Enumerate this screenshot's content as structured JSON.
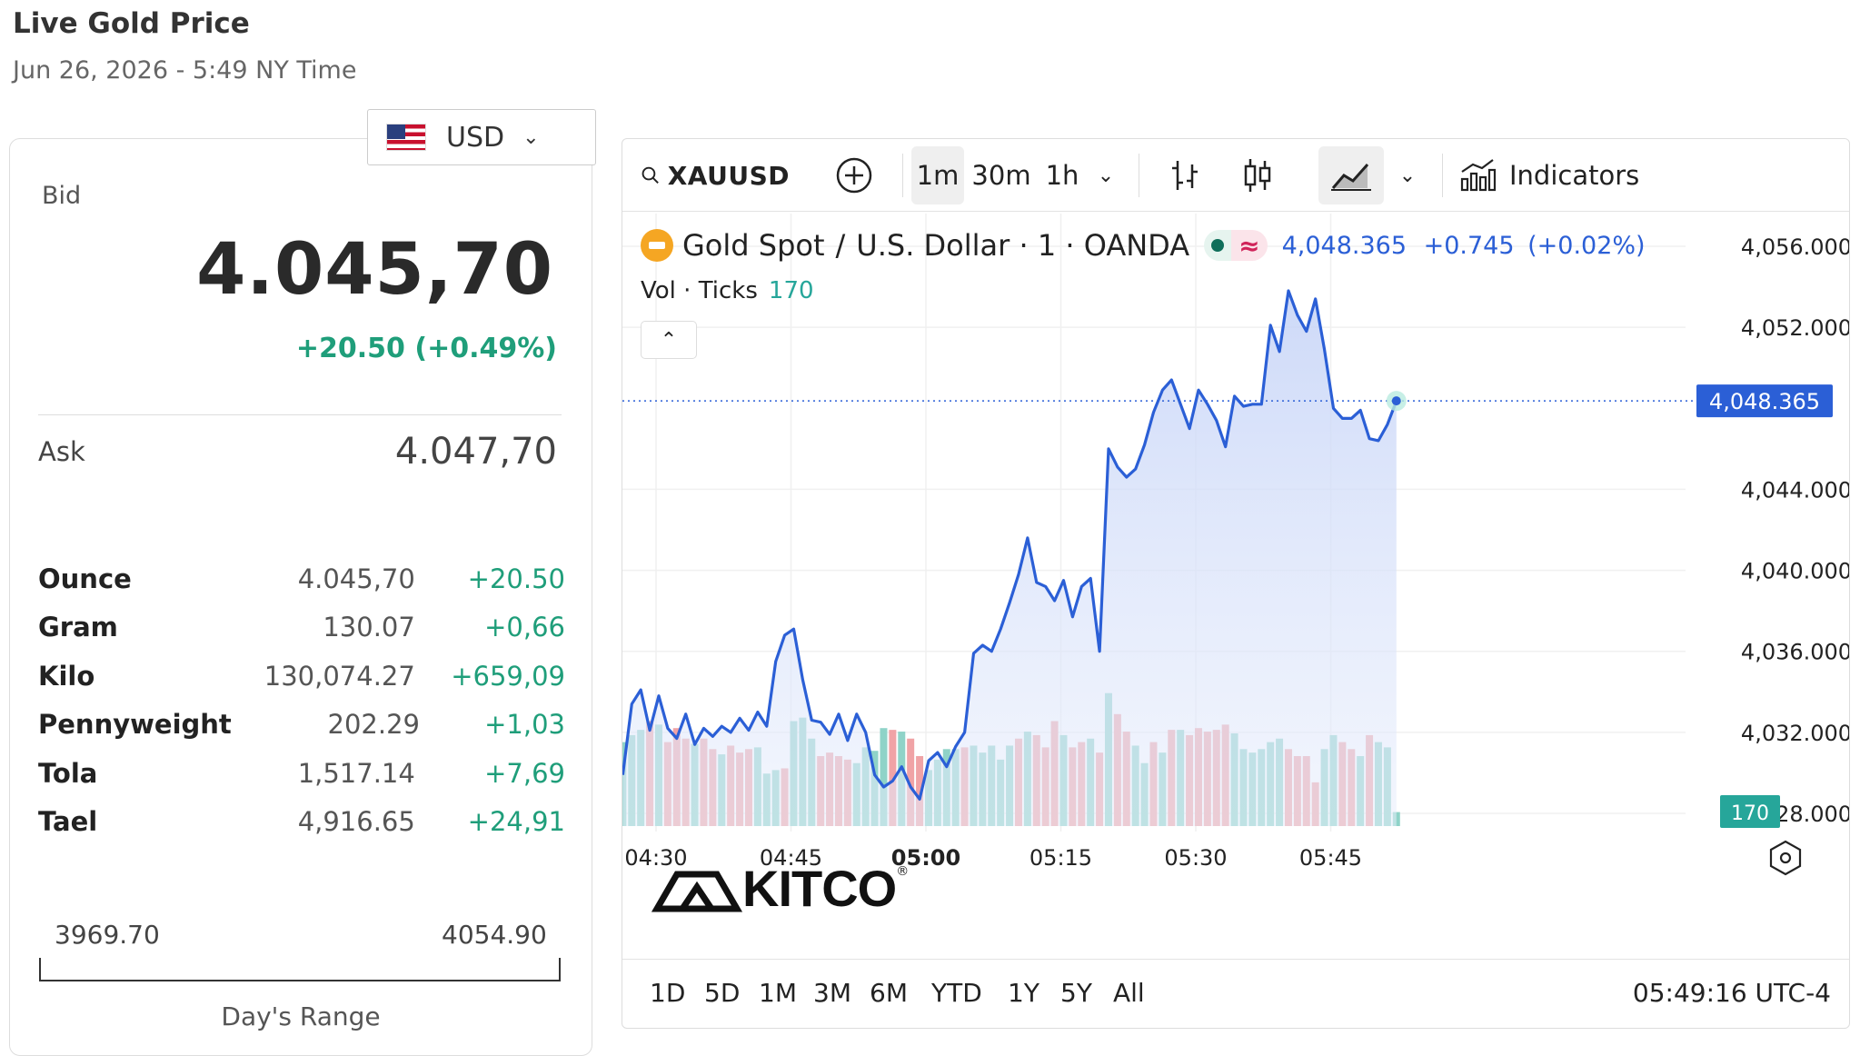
{
  "header": {
    "title": "Live Gold Price",
    "subtitle": "Jun 26, 2026 - 5:49 NY Time"
  },
  "currency": {
    "selected": "USD",
    "flag_icon": "us-flag-icon"
  },
  "quote": {
    "bid_label": "Bid",
    "bid_value": "4.045,70",
    "bid_change": "+20.50 (+0.49%)",
    "ask_label": "Ask",
    "ask_value": "4.047,70",
    "change_color": "#1f9e7a"
  },
  "units": [
    {
      "name": "Ounce",
      "price": "4.045,70",
      "change": "+20.50"
    },
    {
      "name": "Gram",
      "price": "130.07",
      "change": "+0,66"
    },
    {
      "name": "Kilo",
      "price": "130,074.27",
      "change": "+659,09"
    },
    {
      "name": "Pennyweight",
      "price": "202.29",
      "change": "+1,03"
    },
    {
      "name": "Tola",
      "price": "1,517.14",
      "change": "+7,69"
    },
    {
      "name": "Tael",
      "price": "4,916.65",
      "change": "+24,91"
    }
  ],
  "day_range": {
    "low": "3969.70",
    "high": "4054.90",
    "label": "Day's Range"
  },
  "toolbar": {
    "symbol": "XAUUSD",
    "intervals": [
      "1m",
      "30m",
      "1h"
    ],
    "active_interval": "1m",
    "indicators_label": "Indicators"
  },
  "legend": {
    "name": "Gold Spot",
    "separator": "/",
    "quote_name": "U.S. Dollar · 1 · OANDA",
    "last": "4,048.365",
    "change": "+0.745",
    "change_pct": "(+0.02%)",
    "vol_label": "Vol · Ticks",
    "vol_value": "170"
  },
  "range_buttons": [
    "1D",
    "5D",
    "1M",
    "3M",
    "6M",
    "YTD",
    "1Y",
    "5Y",
    "All"
  ],
  "clock": "05:49:16 UTC-4",
  "watermark": "KITCO",
  "chart_data": {
    "type": "area",
    "ylim": [
      4028,
      4056
    ],
    "yticks": [
      "4,056.000",
      "4,052.000",
      "4,044.000",
      "4,040.000",
      "4,036.000",
      "4,032.000",
      "4,028.000"
    ],
    "ytick_values": [
      4056,
      4052,
      4044,
      4040,
      4036,
      4032,
      4028
    ],
    "xticks": [
      "04:30",
      "04:45",
      "05:00",
      "05:15",
      "05:30",
      "05:45"
    ],
    "xtick_minutes": [
      0,
      15,
      30,
      45,
      60,
      75
    ],
    "last_price_label": "4,048.365",
    "last_price": 4048.365,
    "volume_label": "170",
    "line_color": "#2b5fd6",
    "up_color": "#8fd3c8",
    "down_color": "#f0a3a6",
    "series": [
      {
        "values": [
          4029.9,
          4033.4,
          4034.1,
          4032.1,
          4033.8,
          4032.2,
          4031.7,
          4032.9,
          4031.4,
          4032.2,
          4031.8,
          4032.3,
          4032.0,
          4032.7,
          4032.1,
          4033.0,
          4032.3,
          4035.5,
          4036.8,
          4037.1,
          4034.6,
          4032.6,
          4032.5,
          4031.9,
          4032.9,
          4031.6,
          4032.9,
          4032.0,
          4029.9,
          4029.3,
          4029.6,
          4030.3,
          4029.3,
          4028.7,
          4030.6,
          4031.0,
          4030.3,
          4031.3,
          4032.0,
          4035.9,
          4036.3,
          4036.0,
          4037.1,
          4038.4,
          4039.8,
          4041.6,
          4039.4,
          4039.2,
          4038.5,
          4039.5,
          4037.7,
          4039.2,
          4039.6,
          4036.0,
          4046.0,
          4045.1,
          4044.6,
          4045.0,
          4046.2,
          4047.8,
          4048.9,
          4049.4,
          4048.2,
          4047.0,
          4048.9,
          4048.2,
          4047.4,
          4046.1,
          4048.6,
          4048.1,
          4048.2,
          4048.2,
          4052.1,
          4050.8,
          4053.8,
          4052.6,
          4051.8,
          4053.4,
          4050.9,
          4048.0,
          4047.5,
          4047.5,
          4047.9,
          4046.5,
          4046.4,
          4047.2,
          4048.365
        ]
      }
    ],
    "volume": {
      "values": [
        48,
        52,
        55,
        60,
        58,
        48,
        56,
        50,
        47,
        50,
        44,
        41,
        46,
        42,
        44,
        45,
        30,
        32,
        33,
        60,
        62,
        50,
        40,
        42,
        40,
        38,
        36,
        45,
        43,
        56,
        55,
        54,
        50,
        40,
        32,
        38,
        44,
        44,
        45,
        46,
        42,
        46,
        38,
        46,
        50,
        54,
        52,
        45,
        60,
        52,
        45,
        48,
        50,
        42,
        76,
        64,
        54,
        46,
        36,
        48,
        42,
        55,
        55,
        52,
        56,
        54,
        55,
        58,
        53,
        44,
        42,
        44,
        48,
        50,
        44,
        40,
        40,
        25,
        44,
        52,
        48,
        44,
        40,
        52,
        48,
        45,
        8
      ],
      "down": [
        0,
        0,
        0,
        1,
        0,
        1,
        1,
        1,
        0,
        1,
        1,
        0,
        1,
        1,
        1,
        0,
        0,
        0,
        1,
        0,
        0,
        0,
        1,
        1,
        1,
        1,
        0,
        0,
        0,
        0,
        1,
        0,
        1,
        1,
        0,
        0,
        0,
        0,
        1,
        0,
        0,
        0,
        0,
        0,
        1,
        0,
        1,
        1,
        1,
        0,
        1,
        1,
        0,
        1,
        0,
        1,
        1,
        0,
        0,
        1,
        0,
        1,
        0,
        1,
        1,
        1,
        1,
        1,
        0,
        0,
        0,
        0,
        0,
        0,
        1,
        1,
        1,
        1,
        0,
        0,
        1,
        1,
        0,
        1,
        0,
        0,
        0
      ]
    }
  }
}
